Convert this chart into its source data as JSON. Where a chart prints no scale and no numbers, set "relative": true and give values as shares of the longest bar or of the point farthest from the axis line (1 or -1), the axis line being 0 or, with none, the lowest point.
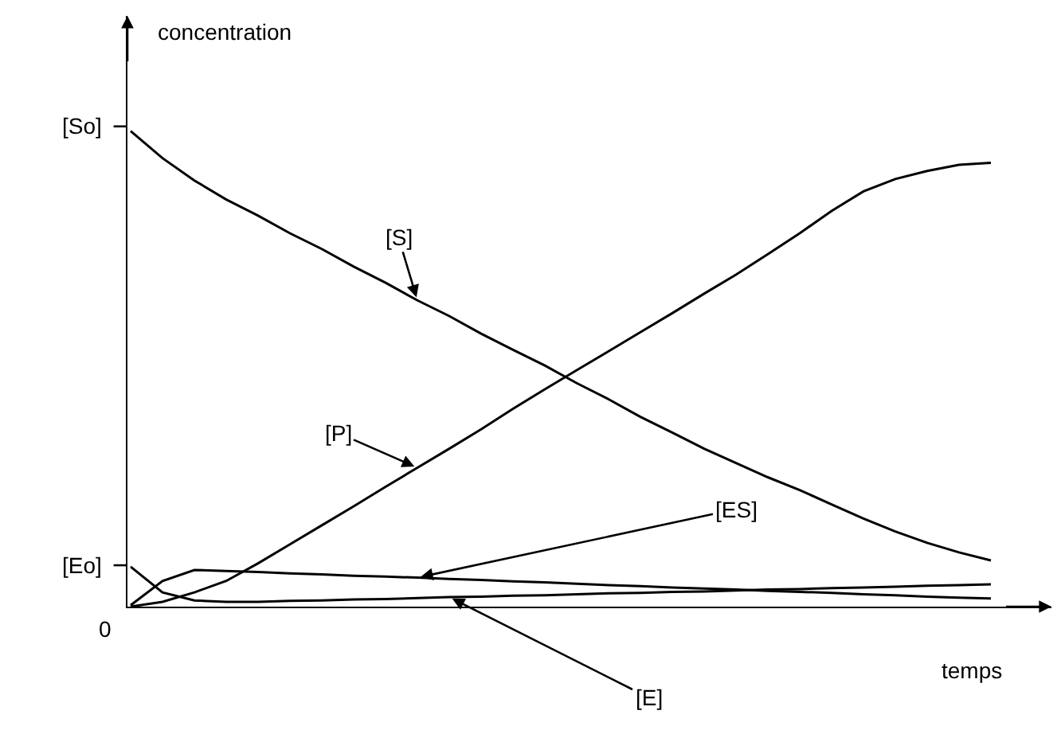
{
  "chart_data": {
    "type": "line",
    "xlabel": "temps",
    "ylabel": "concentration",
    "relative": true,
    "categories": [
      null,
      null,
      null,
      null,
      null,
      null,
      null,
      null,
      null,
      null,
      null,
      null,
      null,
      null,
      null,
      null,
      null,
      null,
      null,
      null,
      null,
      null,
      null,
      null,
      null,
      null,
      null,
      null
    ],
    "annotations": [
      "[So]",
      "[Eo]",
      "0"
    ],
    "series": [
      {
        "name": "[S]",
        "color": "#000000",
        "values": [
          1.0,
          0.943,
          0.896,
          0.856,
          0.822,
          0.785,
          0.752,
          0.715,
          0.681,
          0.644,
          0.611,
          0.574,
          0.54,
          0.507,
          0.47,
          0.436,
          0.399,
          0.366,
          0.332,
          0.302,
          0.272,
          0.245,
          0.215,
          0.185,
          0.158,
          0.134,
          0.114,
          0.097
        ]
      },
      {
        "name": "[P]",
        "color": "#000000",
        "values": [
          0,
          0.01,
          0.03,
          0.054,
          0.091,
          0.131,
          0.171,
          0.211,
          0.252,
          0.292,
          0.332,
          0.373,
          0.416,
          0.457,
          0.497,
          0.537,
          0.577,
          0.617,
          0.658,
          0.698,
          0.741,
          0.785,
          0.832,
          0.873,
          0.899,
          0.916,
          0.929,
          0.933
        ]
      },
      {
        "name": "[ES]",
        "color": "#000000",
        "values": [
          0.003,
          0.054,
          0.077,
          0.075,
          0.073,
          0.07,
          0.068,
          0.065,
          0.063,
          0.061,
          0.058,
          0.056,
          0.053,
          0.051,
          0.048,
          0.045,
          0.043,
          0.04,
          0.038,
          0.036,
          0.033,
          0.031,
          0.029,
          0.026,
          0.024,
          0.021,
          0.019,
          0.017
        ]
      },
      {
        "name": "[E]",
        "color": "#000000",
        "values": [
          0.084,
          0.03,
          0.013,
          0.01,
          0.01,
          0.012,
          0.013,
          0.015,
          0.016,
          0.018,
          0.02,
          0.021,
          0.023,
          0.024,
          0.026,
          0.028,
          0.029,
          0.031,
          0.032,
          0.034,
          0.036,
          0.037,
          0.039,
          0.04,
          0.042,
          0.044,
          0.045,
          0.047
        ]
      }
    ],
    "legend": false,
    "grid": false,
    "marker": "none",
    "line_style": "solid"
  }
}
